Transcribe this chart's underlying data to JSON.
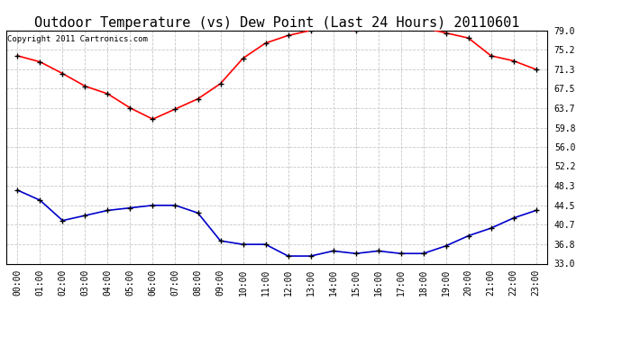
{
  "title": "Outdoor Temperature (vs) Dew Point (Last 24 Hours) 20110601",
  "copyright_text": "Copyright 2011 Cartronics.com",
  "hours": [
    "00:00",
    "01:00",
    "02:00",
    "03:00",
    "04:00",
    "05:00",
    "06:00",
    "07:00",
    "08:00",
    "09:00",
    "10:00",
    "11:00",
    "12:00",
    "13:00",
    "14:00",
    "15:00",
    "16:00",
    "17:00",
    "18:00",
    "19:00",
    "20:00",
    "21:00",
    "22:00",
    "23:00"
  ],
  "temp_red": [
    74.0,
    72.8,
    70.5,
    68.0,
    66.5,
    63.7,
    61.5,
    63.5,
    65.5,
    68.5,
    73.5,
    76.5,
    78.0,
    79.0,
    79.5,
    79.0,
    79.5,
    80.5,
    79.5,
    78.5,
    77.5,
    74.0,
    73.0,
    71.3
  ],
  "dew_blue": [
    47.5,
    45.5,
    41.5,
    42.5,
    43.5,
    44.0,
    44.5,
    44.5,
    43.0,
    37.5,
    36.8,
    36.8,
    34.5,
    34.5,
    35.5,
    35.0,
    35.5,
    35.0,
    35.0,
    36.5,
    38.5,
    40.0,
    42.0,
    43.5
  ],
  "yticks": [
    33.0,
    36.8,
    40.7,
    44.5,
    48.3,
    52.2,
    56.0,
    59.8,
    63.7,
    67.5,
    71.3,
    75.2,
    79.0
  ],
  "ymin": 33.0,
  "ymax": 79.0,
  "temp_color": "#ff0000",
  "dew_color": "#0000cc",
  "grid_color": "#c8c8c8",
  "bg_color": "#ffffff",
  "title_fontsize": 11,
  "copyright_fontsize": 6.5,
  "tick_fontsize": 7,
  "figwidth": 6.9,
  "figheight": 3.75,
  "dpi": 100
}
